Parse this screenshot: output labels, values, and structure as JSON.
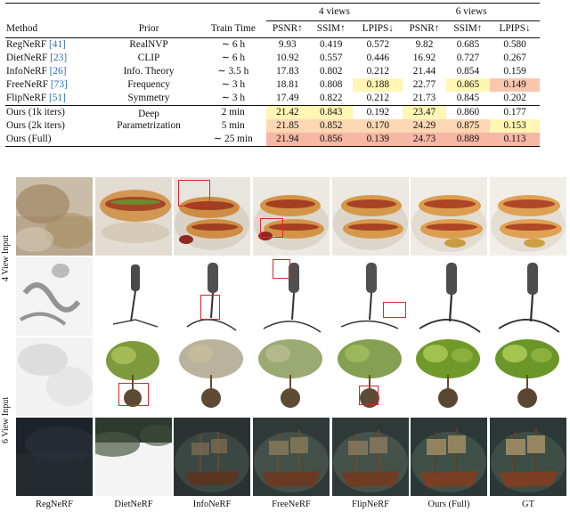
{
  "table": {
    "headers": {
      "method": "Method",
      "prior": "Prior",
      "train_time": "Train Time",
      "group_4": "4 views",
      "group_6": "6 views",
      "psnr": "PSNR↑",
      "ssim": "SSIM↑",
      "lpips": "LPIPS↓"
    },
    "rows": [
      {
        "name": "RegNeRF",
        "cite": "[41]",
        "prior": "RealNVP",
        "time": "∼ 6 h",
        "v4": [
          "9.93",
          "0.419",
          "0.572"
        ],
        "v6": [
          "9.82",
          "0.685",
          "0.580"
        ]
      },
      {
        "name": "DietNeRF",
        "cite": "[23]",
        "prior": "CLIP",
        "time": "∼ 6 h",
        "v4": [
          "10.92",
          "0.557",
          "0.446"
        ],
        "v6": [
          "16.92",
          "0.727",
          "0.267"
        ]
      },
      {
        "name": "InfoNeRF",
        "cite": "[26]",
        "prior": "Info. Theory",
        "time": "∼ 3.5 h",
        "v4": [
          "17.83",
          "0.802",
          "0.212"
        ],
        "v6": [
          "21.44",
          "0.854",
          "0.159"
        ]
      },
      {
        "name": "FreeNeRF",
        "cite": "[73]",
        "prior": "Frequency",
        "time": "∼ 3 h",
        "v4": [
          "18.81",
          "0.808",
          "0.188"
        ],
        "v6": [
          "22.77",
          "0.865",
          "0.149"
        ]
      },
      {
        "name": "FlipNeRF",
        "cite": "[51]",
        "prior": "Symmetry",
        "time": "∼ 3 h",
        "v4": [
          "17.49",
          "0.822",
          "0.212"
        ],
        "v6": [
          "21.73",
          "0.845",
          "0.202"
        ]
      }
    ],
    "ours_prior_line1": "Deep",
    "ours_prior_line2": "Parametrization",
    "ours_rows": [
      {
        "name": "Ours (1k iters)",
        "time": "2 min",
        "v4": [
          "21.42",
          "0.843",
          "0.192"
        ],
        "v6": [
          "23.47",
          "0.860",
          "0.177"
        ]
      },
      {
        "name": "Ours (2k iters)",
        "time": "5 min",
        "v4": [
          "21.85",
          "0.852",
          "0.170"
        ],
        "v6": [
          "24.29",
          "0.875",
          "0.153"
        ]
      },
      {
        "name": "Ours (Full)",
        "time": "∼ 25 min",
        "v4": [
          "21.94",
          "0.856",
          "0.139"
        ],
        "v6": [
          "24.73",
          "0.889",
          "0.113"
        ]
      }
    ]
  },
  "figure": {
    "row_label_4": "4 View Input",
    "row_label_6": "6 View Input",
    "columns": [
      "RegNeRF",
      "DietNeRF",
      "InfoNeRF",
      "FreeNeRF",
      "FlipNeRF",
      "Ours (Full)",
      "GT"
    ]
  },
  "colors": {
    "highlight_yellow": "#fff6b3",
    "highlight_orange": "#fbd7b3",
    "highlight_red": "#f6b7a4",
    "box_red": "#e0252b",
    "cite_blue": "#2b6cc4"
  }
}
